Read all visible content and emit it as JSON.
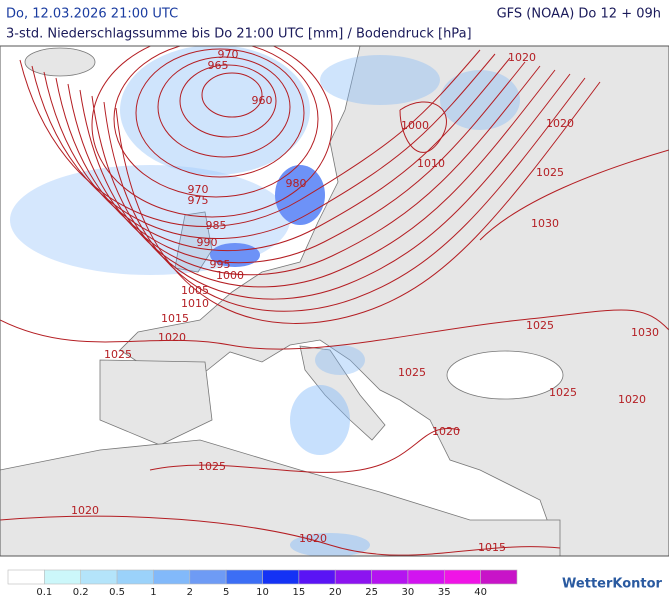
{
  "header": {
    "datetime": "Do, 12.03.2026 21:00 UTC",
    "model": "GFS (NOAA) Do 12 + 09h",
    "subtitle": "3-std. Niederschlagssumme bis Do 21:00 UTC [mm] / Bodendruck [hPa]"
  },
  "isobar_labels": [
    970,
    965,
    960,
    1000,
    1010,
    1020,
    1020,
    1025,
    1030,
    970,
    975,
    980,
    985,
    990,
    995,
    1000,
    1005,
    1010,
    1015,
    1020,
    1025,
    1025,
    1030,
    1025,
    1025,
    1020,
    1020,
    1025,
    1020,
    1020,
    1015
  ],
  "legend": {
    "colors": [
      "#ffffff",
      "#ccf7fa",
      "#b4e4fa",
      "#9bd2fa",
      "#82b9fa",
      "#6e9bf5",
      "#3c6ef5",
      "#1432f5",
      "#5a14f5",
      "#8c14f0",
      "#b414f0",
      "#d214f0",
      "#f014e6",
      "#c814c8"
    ],
    "labels": [
      "0.1",
      "0.2",
      "0.5",
      "1",
      "2",
      "5",
      "10",
      "15",
      "20",
      "25",
      "30",
      "35",
      "40"
    ]
  },
  "logo": "WetterKontor"
}
